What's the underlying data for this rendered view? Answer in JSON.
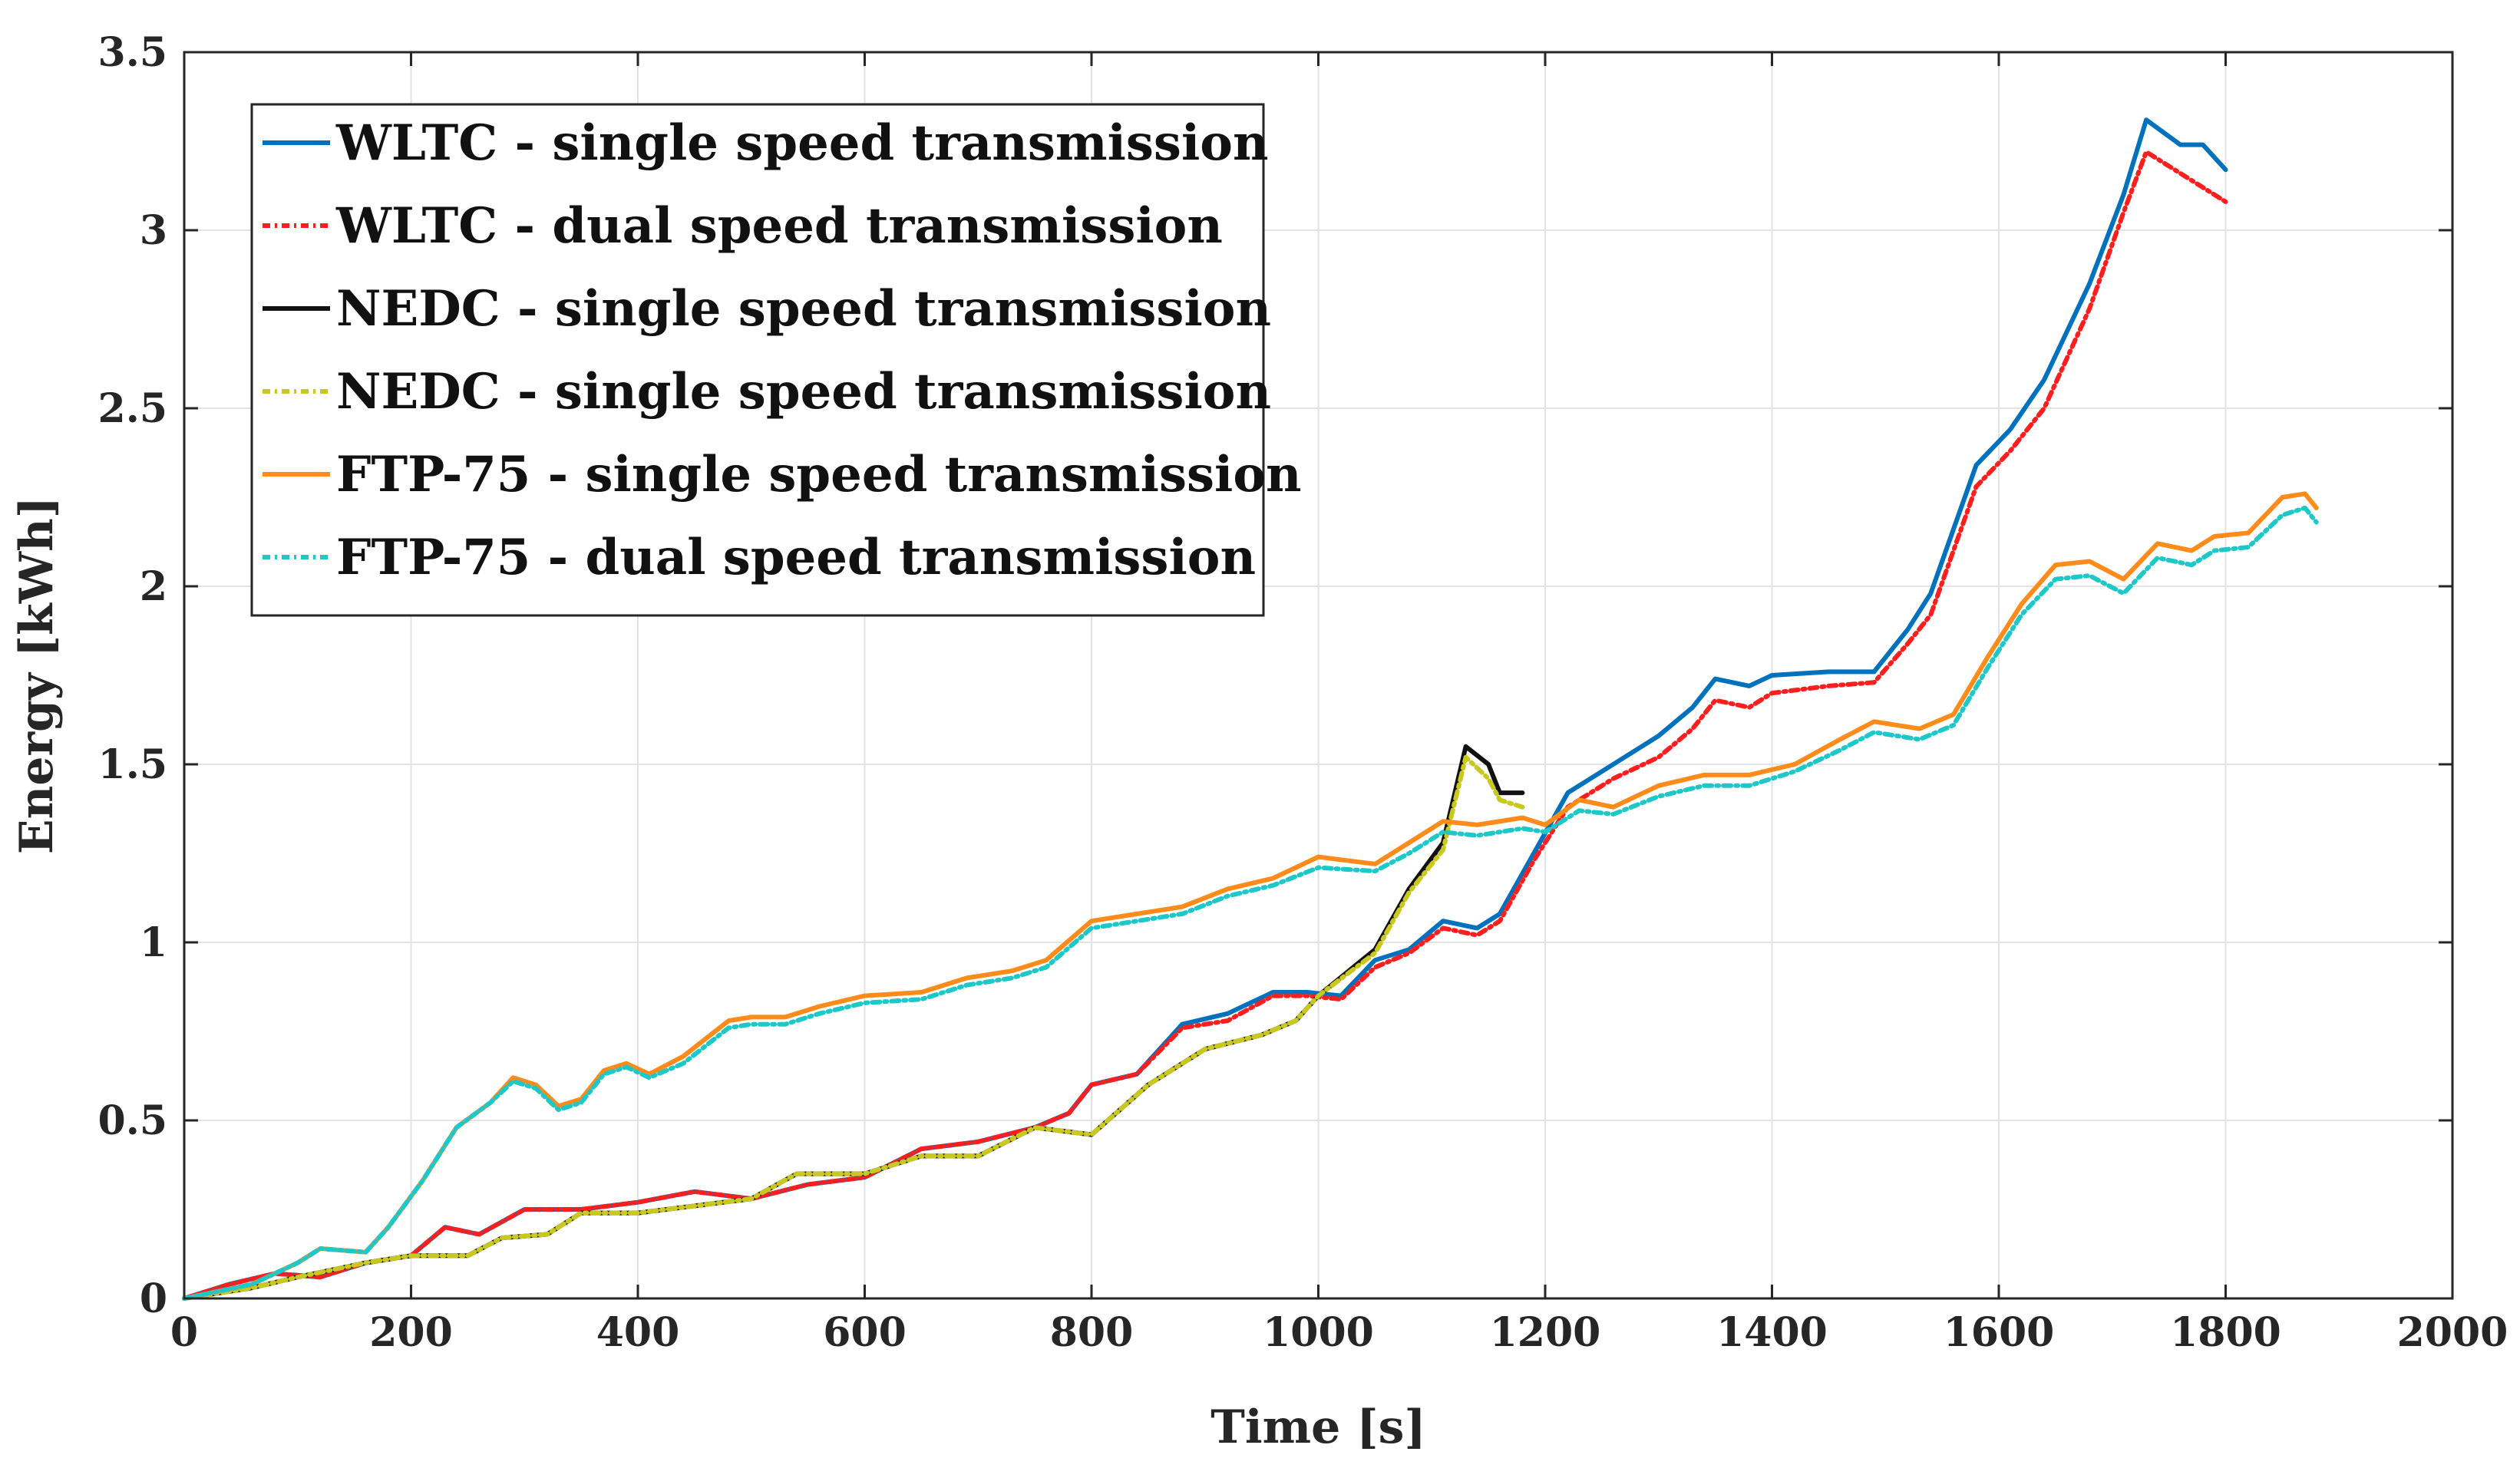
{
  "chart_data": {
    "type": "line",
    "title": "",
    "xlabel": "Time [s]",
    "ylabel": "Energy [kWh]",
    "xlim": [
      0,
      2000
    ],
    "ylim": [
      0,
      3.5
    ],
    "x_ticks": [
      0,
      200,
      400,
      600,
      800,
      1000,
      1200,
      1400,
      1600,
      1800,
      2000
    ],
    "y_ticks": [
      0,
      0.5,
      1,
      1.5,
      2,
      2.5,
      3,
      3.5
    ],
    "x_tick_labels": [
      "0",
      "200",
      "400",
      "600",
      "800",
      "1000",
      "1200",
      "1400",
      "1600",
      "1800",
      "2000"
    ],
    "y_tick_labels": [
      "0",
      "0.5",
      "1",
      "1.5",
      "2",
      "2.5",
      "3",
      "3.5"
    ],
    "grid": true,
    "legend_position": "top-left",
    "series": [
      {
        "name": "WLTC - single speed transmission",
        "color": "#0072BD",
        "dash": "solid",
        "points": [
          [
            0,
            0
          ],
          [
            40,
            0.04
          ],
          [
            80,
            0.07
          ],
          [
            120,
            0.06
          ],
          [
            160,
            0.1
          ],
          [
            200,
            0.12
          ],
          [
            230,
            0.2
          ],
          [
            260,
            0.18
          ],
          [
            300,
            0.25
          ],
          [
            350,
            0.25
          ],
          [
            400,
            0.27
          ],
          [
            450,
            0.3
          ],
          [
            500,
            0.28
          ],
          [
            550,
            0.32
          ],
          [
            600,
            0.34
          ],
          [
            650,
            0.42
          ],
          [
            700,
            0.44
          ],
          [
            750,
            0.48
          ],
          [
            780,
            0.52
          ],
          [
            800,
            0.6
          ],
          [
            840,
            0.63
          ],
          [
            880,
            0.77
          ],
          [
            920,
            0.8
          ],
          [
            960,
            0.86
          ],
          [
            990,
            0.86
          ],
          [
            1020,
            0.85
          ],
          [
            1050,
            0.95
          ],
          [
            1080,
            0.98
          ],
          [
            1110,
            1.06
          ],
          [
            1140,
            1.04
          ],
          [
            1160,
            1.08
          ],
          [
            1190,
            1.25
          ],
          [
            1220,
            1.42
          ],
          [
            1260,
            1.5
          ],
          [
            1300,
            1.58
          ],
          [
            1330,
            1.66
          ],
          [
            1350,
            1.74
          ],
          [
            1380,
            1.72
          ],
          [
            1400,
            1.75
          ],
          [
            1450,
            1.76
          ],
          [
            1490,
            1.76
          ],
          [
            1520,
            1.88
          ],
          [
            1540,
            1.98
          ],
          [
            1580,
            2.34
          ],
          [
            1610,
            2.44
          ],
          [
            1640,
            2.58
          ],
          [
            1680,
            2.85
          ],
          [
            1710,
            3.1
          ],
          [
            1730,
            3.31
          ],
          [
            1760,
            3.24
          ],
          [
            1780,
            3.24
          ],
          [
            1800,
            3.17
          ]
        ]
      },
      {
        "name": "WLTC - dual speed transmission",
        "color": "#FF1E1E",
        "dash": "10,6,3,6",
        "points": [
          [
            0,
            0
          ],
          [
            40,
            0.04
          ],
          [
            80,
            0.07
          ],
          [
            120,
            0.06
          ],
          [
            160,
            0.1
          ],
          [
            200,
            0.12
          ],
          [
            230,
            0.2
          ],
          [
            260,
            0.18
          ],
          [
            300,
            0.25
          ],
          [
            350,
            0.25
          ],
          [
            400,
            0.27
          ],
          [
            450,
            0.3
          ],
          [
            500,
            0.28
          ],
          [
            550,
            0.32
          ],
          [
            600,
            0.34
          ],
          [
            650,
            0.42
          ],
          [
            700,
            0.44
          ],
          [
            750,
            0.48
          ],
          [
            780,
            0.52
          ],
          [
            800,
            0.6
          ],
          [
            840,
            0.63
          ],
          [
            880,
            0.76
          ],
          [
            920,
            0.78
          ],
          [
            960,
            0.85
          ],
          [
            990,
            0.85
          ],
          [
            1020,
            0.84
          ],
          [
            1050,
            0.93
          ],
          [
            1080,
            0.97
          ],
          [
            1110,
            1.04
          ],
          [
            1140,
            1.02
          ],
          [
            1160,
            1.06
          ],
          [
            1190,
            1.23
          ],
          [
            1220,
            1.38
          ],
          [
            1260,
            1.46
          ],
          [
            1300,
            1.52
          ],
          [
            1330,
            1.6
          ],
          [
            1350,
            1.68
          ],
          [
            1380,
            1.66
          ],
          [
            1400,
            1.7
          ],
          [
            1450,
            1.72
          ],
          [
            1490,
            1.73
          ],
          [
            1520,
            1.84
          ],
          [
            1540,
            1.92
          ],
          [
            1580,
            2.28
          ],
          [
            1610,
            2.38
          ],
          [
            1640,
            2.5
          ],
          [
            1680,
            2.78
          ],
          [
            1710,
            3.05
          ],
          [
            1730,
            3.22
          ],
          [
            1760,
            3.16
          ],
          [
            1780,
            3.12
          ],
          [
            1800,
            3.08
          ]
        ]
      },
      {
        "name": "NEDC - single speed transmission",
        "color": "#111111",
        "dash": "solid",
        "points": [
          [
            0,
            0
          ],
          [
            60,
            0.03
          ],
          [
            100,
            0.06
          ],
          [
            160,
            0.1
          ],
          [
            200,
            0.12
          ],
          [
            250,
            0.12
          ],
          [
            280,
            0.17
          ],
          [
            320,
            0.18
          ],
          [
            350,
            0.24
          ],
          [
            400,
            0.24
          ],
          [
            450,
            0.26
          ],
          [
            500,
            0.28
          ],
          [
            540,
            0.35
          ],
          [
            600,
            0.35
          ],
          [
            650,
            0.4
          ],
          [
            700,
            0.4
          ],
          [
            750,
            0.48
          ],
          [
            800,
            0.46
          ],
          [
            850,
            0.6
          ],
          [
            900,
            0.7
          ],
          [
            950,
            0.74
          ],
          [
            980,
            0.78
          ],
          [
            1000,
            0.85
          ],
          [
            1050,
            0.98
          ],
          [
            1080,
            1.15
          ],
          [
            1110,
            1.28
          ],
          [
            1130,
            1.55
          ],
          [
            1150,
            1.5
          ],
          [
            1160,
            1.42
          ],
          [
            1180,
            1.42
          ]
        ]
      },
      {
        "name": "NEDC - single speed transmission",
        "color": "#C8C81E",
        "dash": "10,6,3,6",
        "points": [
          [
            0,
            0
          ],
          [
            60,
            0.03
          ],
          [
            100,
            0.06
          ],
          [
            160,
            0.1
          ],
          [
            200,
            0.12
          ],
          [
            250,
            0.12
          ],
          [
            280,
            0.17
          ],
          [
            320,
            0.18
          ],
          [
            350,
            0.24
          ],
          [
            400,
            0.24
          ],
          [
            450,
            0.26
          ],
          [
            500,
            0.28
          ],
          [
            540,
            0.35
          ],
          [
            600,
            0.35
          ],
          [
            650,
            0.4
          ],
          [
            700,
            0.4
          ],
          [
            750,
            0.48
          ],
          [
            800,
            0.46
          ],
          [
            850,
            0.6
          ],
          [
            900,
            0.7
          ],
          [
            950,
            0.74
          ],
          [
            980,
            0.78
          ],
          [
            1000,
            0.85
          ],
          [
            1050,
            0.97
          ],
          [
            1080,
            1.14
          ],
          [
            1110,
            1.26
          ],
          [
            1130,
            1.52
          ],
          [
            1150,
            1.46
          ],
          [
            1160,
            1.4
          ],
          [
            1180,
            1.38
          ]
        ]
      },
      {
        "name": "FTP-75 - single speed transmission",
        "color": "#FF8C1A",
        "dash": "solid",
        "points": [
          [
            0,
            0
          ],
          [
            60,
            0.04
          ],
          [
            100,
            0.1
          ],
          [
            120,
            0.14
          ],
          [
            160,
            0.13
          ],
          [
            180,
            0.2
          ],
          [
            210,
            0.33
          ],
          [
            240,
            0.48
          ],
          [
            270,
            0.55
          ],
          [
            290,
            0.62
          ],
          [
            310,
            0.6
          ],
          [
            330,
            0.54
          ],
          [
            350,
            0.56
          ],
          [
            370,
            0.64
          ],
          [
            390,
            0.66
          ],
          [
            410,
            0.63
          ],
          [
            440,
            0.68
          ],
          [
            480,
            0.78
          ],
          [
            500,
            0.79
          ],
          [
            530,
            0.79
          ],
          [
            560,
            0.82
          ],
          [
            600,
            0.85
          ],
          [
            650,
            0.86
          ],
          [
            690,
            0.9
          ],
          [
            730,
            0.92
          ],
          [
            760,
            0.95
          ],
          [
            800,
            1.06
          ],
          [
            840,
            1.08
          ],
          [
            880,
            1.1
          ],
          [
            920,
            1.15
          ],
          [
            960,
            1.18
          ],
          [
            1000,
            1.24
          ],
          [
            1050,
            1.22
          ],
          [
            1080,
            1.28
          ],
          [
            1110,
            1.34
          ],
          [
            1140,
            1.33
          ],
          [
            1180,
            1.35
          ],
          [
            1200,
            1.33
          ],
          [
            1230,
            1.4
          ],
          [
            1260,
            1.38
          ],
          [
            1300,
            1.44
          ],
          [
            1340,
            1.47
          ],
          [
            1380,
            1.47
          ],
          [
            1420,
            1.5
          ],
          [
            1460,
            1.57
          ],
          [
            1490,
            1.62
          ],
          [
            1530,
            1.6
          ],
          [
            1560,
            1.64
          ],
          [
            1590,
            1.8
          ],
          [
            1620,
            1.95
          ],
          [
            1650,
            2.06
          ],
          [
            1680,
            2.07
          ],
          [
            1710,
            2.02
          ],
          [
            1740,
            2.12
          ],
          [
            1770,
            2.1
          ],
          [
            1790,
            2.14
          ],
          [
            1820,
            2.15
          ],
          [
            1850,
            2.25
          ],
          [
            1870,
            2.26
          ],
          [
            1880,
            2.22
          ]
        ]
      },
      {
        "name": "FTP-75 - dual speed transmission",
        "color": "#1EC8C8",
        "dash": "10,6,3,6",
        "points": [
          [
            0,
            0
          ],
          [
            60,
            0.04
          ],
          [
            100,
            0.1
          ],
          [
            120,
            0.14
          ],
          [
            160,
            0.13
          ],
          [
            180,
            0.2
          ],
          [
            210,
            0.33
          ],
          [
            240,
            0.48
          ],
          [
            270,
            0.55
          ],
          [
            290,
            0.61
          ],
          [
            310,
            0.59
          ],
          [
            330,
            0.53
          ],
          [
            350,
            0.55
          ],
          [
            370,
            0.63
          ],
          [
            390,
            0.65
          ],
          [
            410,
            0.62
          ],
          [
            440,
            0.66
          ],
          [
            480,
            0.76
          ],
          [
            500,
            0.77
          ],
          [
            530,
            0.77
          ],
          [
            560,
            0.8
          ],
          [
            600,
            0.83
          ],
          [
            650,
            0.84
          ],
          [
            690,
            0.88
          ],
          [
            730,
            0.9
          ],
          [
            760,
            0.93
          ],
          [
            800,
            1.04
          ],
          [
            840,
            1.06
          ],
          [
            880,
            1.08
          ],
          [
            920,
            1.13
          ],
          [
            960,
            1.16
          ],
          [
            1000,
            1.21
          ],
          [
            1050,
            1.2
          ],
          [
            1080,
            1.25
          ],
          [
            1110,
            1.31
          ],
          [
            1140,
            1.3
          ],
          [
            1180,
            1.32
          ],
          [
            1200,
            1.31
          ],
          [
            1230,
            1.37
          ],
          [
            1260,
            1.36
          ],
          [
            1300,
            1.41
          ],
          [
            1340,
            1.44
          ],
          [
            1380,
            1.44
          ],
          [
            1420,
            1.48
          ],
          [
            1460,
            1.54
          ],
          [
            1490,
            1.59
          ],
          [
            1530,
            1.57
          ],
          [
            1560,
            1.61
          ],
          [
            1590,
            1.77
          ],
          [
            1620,
            1.92
          ],
          [
            1650,
            2.02
          ],
          [
            1680,
            2.03
          ],
          [
            1710,
            1.98
          ],
          [
            1740,
            2.08
          ],
          [
            1770,
            2.06
          ],
          [
            1790,
            2.1
          ],
          [
            1820,
            2.11
          ],
          [
            1850,
            2.2
          ],
          [
            1870,
            2.22
          ],
          [
            1880,
            2.18
          ]
        ]
      }
    ]
  }
}
